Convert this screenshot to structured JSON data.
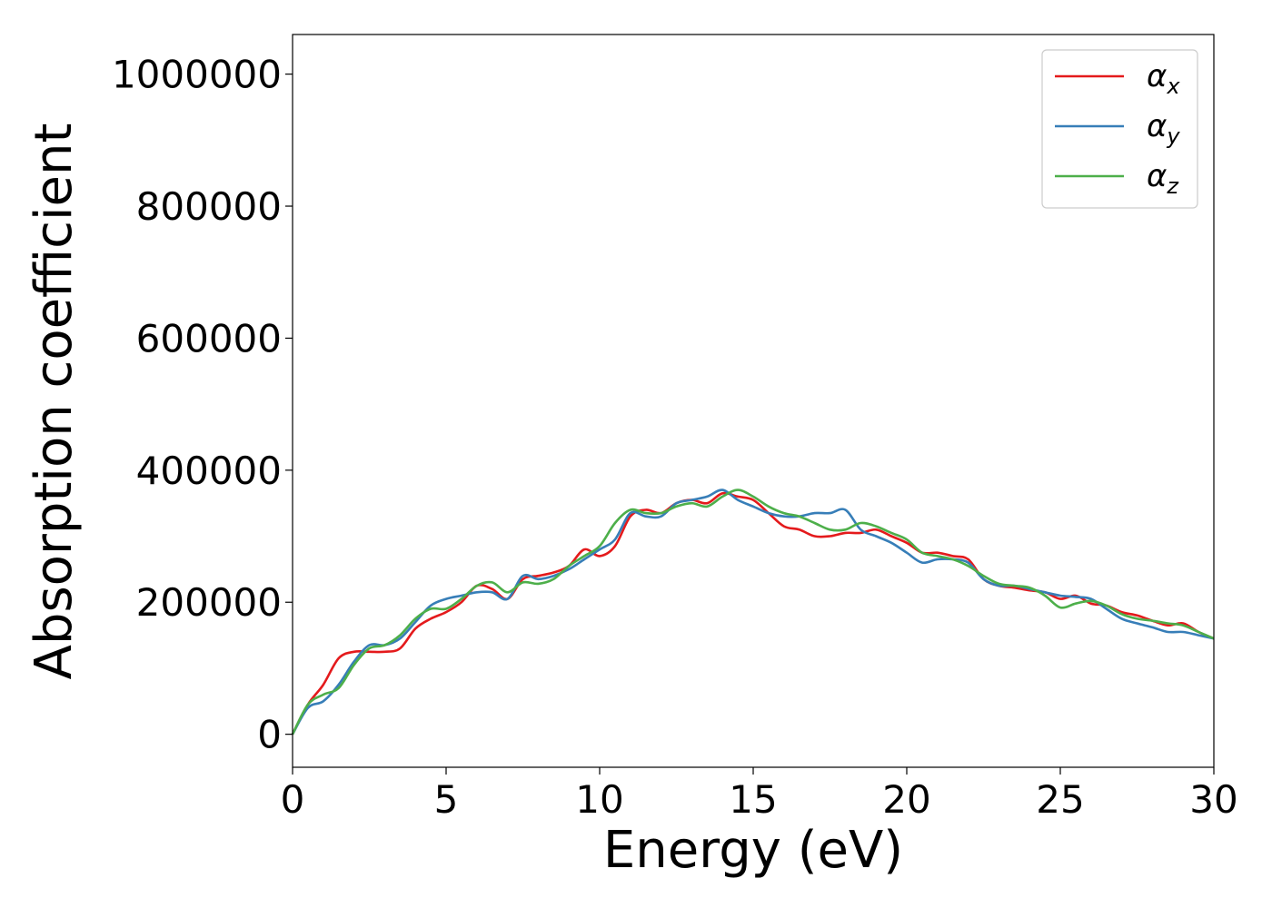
{
  "chart_data": {
    "type": "line",
    "title": "",
    "xlabel": "Energy (eV)",
    "ylabel": "Absorption coefficient",
    "xlim": [
      0,
      30
    ],
    "ylim": [
      -50000,
      1060000
    ],
    "x_ticks": [
      0,
      5,
      10,
      15,
      20,
      25,
      30
    ],
    "y_ticks": [
      0,
      200000,
      400000,
      600000,
      800000,
      1000000
    ],
    "grid": false,
    "legend_position": "top-right",
    "series": [
      {
        "name": "α_x",
        "name_base": "α",
        "name_sub": "x",
        "color": "#e41a1c",
        "x": [
          0,
          0.5,
          1,
          1.5,
          2,
          2.5,
          3,
          3.5,
          4,
          4.5,
          5,
          5.5,
          6,
          6.5,
          7,
          7.5,
          8,
          8.5,
          9,
          9.5,
          10,
          10.5,
          11,
          11.5,
          12,
          12.5,
          13,
          13.5,
          14,
          14.5,
          15,
          15.5,
          16,
          16.5,
          17,
          17.5,
          18,
          18.5,
          19,
          19.5,
          20,
          20.5,
          21,
          21.5,
          22,
          22.5,
          23,
          23.5,
          24,
          24.5,
          25,
          25.5,
          26,
          26.5,
          27,
          27.5,
          28,
          28.5,
          29,
          29.5,
          30
        ],
        "y": [
          0,
          45000,
          75000,
          115000,
          125000,
          125000,
          125000,
          130000,
          160000,
          175000,
          185000,
          200000,
          225000,
          220000,
          205000,
          235000,
          240000,
          245000,
          255000,
          280000,
          270000,
          285000,
          330000,
          340000,
          335000,
          350000,
          355000,
          350000,
          365000,
          360000,
          355000,
          335000,
          315000,
          310000,
          300000,
          300000,
          305000,
          305000,
          310000,
          300000,
          290000,
          275000,
          275000,
          270000,
          265000,
          235000,
          225000,
          222000,
          218000,
          215000,
          205000,
          210000,
          198000,
          195000,
          185000,
          180000,
          172000,
          165000,
          168000,
          155000,
          145000
        ]
      },
      {
        "name": "α_y",
        "name_base": "α",
        "name_sub": "y",
        "color": "#377eb8",
        "x": [
          0,
          0.5,
          1,
          1.5,
          2,
          2.5,
          3,
          3.5,
          4,
          4.5,
          5,
          5.5,
          6,
          6.5,
          7,
          7.5,
          8,
          8.5,
          9,
          9.5,
          10,
          10.5,
          11,
          11.5,
          12,
          12.5,
          13,
          13.5,
          14,
          14.5,
          15,
          15.5,
          16,
          16.5,
          17,
          17.5,
          18,
          18.5,
          19,
          19.5,
          20,
          20.5,
          21,
          21.5,
          22,
          22.5,
          23,
          23.5,
          24,
          24.5,
          25,
          25.5,
          26,
          26.5,
          27,
          27.5,
          28,
          28.5,
          29,
          29.5,
          30
        ],
        "y": [
          0,
          40000,
          50000,
          75000,
          110000,
          135000,
          135000,
          145000,
          170000,
          195000,
          205000,
          210000,
          215000,
          215000,
          205000,
          240000,
          235000,
          240000,
          250000,
          265000,
          280000,
          295000,
          335000,
          330000,
          330000,
          350000,
          355000,
          360000,
          370000,
          355000,
          345000,
          335000,
          330000,
          330000,
          335000,
          335000,
          340000,
          310000,
          300000,
          290000,
          275000,
          260000,
          265000,
          265000,
          260000,
          235000,
          225000,
          225000,
          220000,
          215000,
          210000,
          208000,
          205000,
          190000,
          175000,
          168000,
          162000,
          155000,
          155000,
          150000,
          145000
        ]
      },
      {
        "name": "α_z",
        "name_base": "α",
        "name_sub": "z",
        "color": "#4daf4a",
        "x": [
          0,
          0.5,
          1,
          1.5,
          2,
          2.5,
          3,
          3.5,
          4,
          4.5,
          5,
          5.5,
          6,
          6.5,
          7,
          7.5,
          8,
          8.5,
          9,
          9.5,
          10,
          10.5,
          11,
          11.5,
          12,
          12.5,
          13,
          13.5,
          14,
          14.5,
          15,
          15.5,
          16,
          16.5,
          17,
          17.5,
          18,
          18.5,
          19,
          19.5,
          20,
          20.5,
          21,
          21.5,
          22,
          22.5,
          23,
          23.5,
          24,
          24.5,
          25,
          25.5,
          26,
          26.5,
          27,
          27.5,
          28,
          28.5,
          29,
          29.5,
          30
        ],
        "y": [
          0,
          45000,
          60000,
          70000,
          105000,
          130000,
          135000,
          150000,
          175000,
          190000,
          190000,
          205000,
          225000,
          230000,
          215000,
          230000,
          228000,
          235000,
          255000,
          270000,
          285000,
          320000,
          340000,
          335000,
          335000,
          345000,
          350000,
          345000,
          360000,
          370000,
          360000,
          345000,
          335000,
          330000,
          320000,
          310000,
          310000,
          320000,
          315000,
          305000,
          295000,
          275000,
          270000,
          265000,
          255000,
          240000,
          228000,
          225000,
          222000,
          210000,
          192000,
          198000,
          202000,
          195000,
          182000,
          175000,
          172000,
          168000,
          165000,
          155000,
          145000
        ]
      }
    ]
  }
}
